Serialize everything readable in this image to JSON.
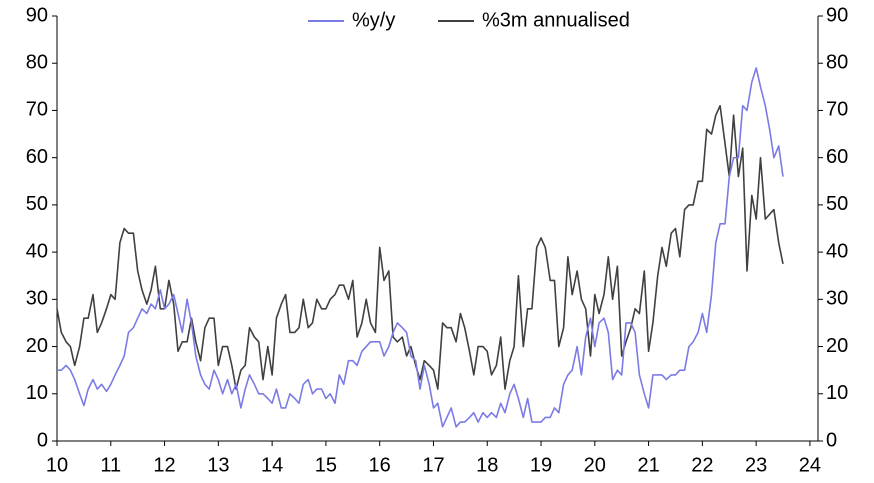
{
  "chart_data": {
    "type": "line",
    "x": [
      10,
      10.08,
      10.17,
      10.25,
      10.33,
      10.42,
      10.5,
      10.58,
      10.67,
      10.75,
      10.83,
      10.92,
      11,
      11.08,
      11.17,
      11.25,
      11.33,
      11.42,
      11.5,
      11.58,
      11.67,
      11.75,
      11.83,
      11.92,
      12,
      12.08,
      12.17,
      12.25,
      12.33,
      12.42,
      12.5,
      12.58,
      12.67,
      12.75,
      12.83,
      12.92,
      13,
      13.08,
      13.17,
      13.25,
      13.33,
      13.42,
      13.5,
      13.58,
      13.67,
      13.75,
      13.83,
      13.92,
      14,
      14.08,
      14.17,
      14.25,
      14.33,
      14.42,
      14.5,
      14.58,
      14.67,
      14.75,
      14.83,
      14.92,
      15,
      15.08,
      15.17,
      15.25,
      15.33,
      15.42,
      15.5,
      15.58,
      15.67,
      15.75,
      15.83,
      15.92,
      16,
      16.08,
      16.17,
      16.25,
      16.33,
      16.42,
      16.5,
      16.58,
      16.67,
      16.75,
      16.83,
      16.92,
      17,
      17.08,
      17.17,
      17.25,
      17.33,
      17.42,
      17.5,
      17.58,
      17.67,
      17.75,
      17.83,
      17.92,
      18,
      18.08,
      18.17,
      18.25,
      18.33,
      18.42,
      18.5,
      18.58,
      18.67,
      18.75,
      18.83,
      18.92,
      19,
      19.08,
      19.17,
      19.25,
      19.33,
      19.42,
      19.5,
      19.58,
      19.67,
      19.75,
      19.83,
      19.92,
      20,
      20.08,
      20.17,
      20.25,
      20.33,
      20.42,
      20.5,
      20.58,
      20.67,
      20.75,
      20.83,
      20.92,
      21,
      21.08,
      21.17,
      21.25,
      21.33,
      21.42,
      21.5,
      21.58,
      21.67,
      21.75,
      21.83,
      21.92,
      22,
      22.08,
      22.17,
      22.25,
      22.33,
      22.42,
      22.5,
      22.58,
      22.67,
      22.75,
      22.83,
      22.92,
      23,
      23.08,
      23.17,
      23.25,
      23.33,
      23.42,
      23.5
    ],
    "series": [
      {
        "name": "%y/y",
        "color": "#7b7be6",
        "values": [
          15,
          15,
          16,
          15,
          13,
          10,
          7.5,
          11,
          13,
          11,
          12,
          10.5,
          12,
          14,
          16,
          18,
          23,
          24,
          26,
          28,
          27,
          29,
          28,
          32,
          28,
          29,
          31,
          27,
          23,
          30,
          25,
          18,
          14,
          12,
          11,
          15,
          13,
          10,
          13,
          10,
          12,
          7,
          11,
          14,
          12,
          10,
          10,
          9,
          8,
          11,
          7,
          7,
          10,
          9,
          8,
          12,
          13,
          10,
          11,
          11,
          9,
          10,
          8,
          14,
          12,
          17,
          17,
          16,
          19,
          20,
          21,
          21,
          21,
          18,
          20,
          23,
          25,
          24,
          23,
          18,
          17,
          11,
          16,
          12,
          7,
          8,
          3,
          5,
          7,
          3,
          4,
          4,
          5,
          6,
          4,
          6,
          5,
          6,
          5,
          8,
          6,
          10,
          12,
          9,
          5,
          9,
          4,
          4,
          4,
          5,
          5,
          7,
          6,
          12,
          14,
          15,
          20,
          14,
          22,
          26,
          20,
          25,
          26,
          23,
          13,
          15,
          14,
          25,
          25,
          23,
          14,
          10,
          7,
          14,
          14,
          14,
          13,
          14,
          14,
          15,
          15,
          20,
          21,
          23,
          27,
          23,
          31,
          42,
          46,
          46,
          56,
          60,
          60,
          71,
          70,
          76,
          79,
          75,
          71,
          66,
          60,
          62.5,
          56
        ]
      },
      {
        "name": "%3m annualised",
        "color": "#404040",
        "values": [
          28,
          23,
          21,
          20,
          16,
          20,
          26,
          26,
          31,
          23,
          25,
          28,
          31,
          30,
          42,
          45,
          44,
          44,
          36,
          32,
          29,
          32,
          37,
          28,
          28,
          34,
          29,
          19,
          21,
          21,
          26,
          21,
          17,
          24,
          26,
          26,
          16,
          20,
          20,
          16,
          11,
          15,
          16,
          24,
          22,
          21,
          13,
          20,
          14,
          26,
          29,
          31,
          23,
          23,
          24,
          30,
          24,
          25,
          30,
          28,
          28,
          30,
          31,
          33,
          33,
          30,
          34,
          22,
          25,
          30,
          25,
          23,
          41,
          34,
          36,
          22,
          21,
          22,
          18,
          20,
          16,
          13,
          17,
          16,
          15,
          11,
          25,
          24,
          24,
          21,
          27,
          24,
          19,
          14,
          20,
          20,
          19,
          14,
          16,
          22,
          11,
          17,
          20,
          35,
          20,
          28,
          28,
          41,
          43,
          41,
          34,
          34,
          20,
          24,
          39,
          31,
          36,
          30,
          28,
          18,
          31,
          27,
          31,
          39,
          30,
          37,
          18,
          21,
          24,
          28,
          27,
          36,
          19,
          25,
          35,
          41,
          37,
          44,
          45,
          39,
          49,
          50,
          50,
          55,
          55,
          66,
          65,
          69,
          71,
          63,
          56,
          69,
          56,
          62,
          36,
          52,
          47,
          60,
          47,
          48,
          49,
          42,
          37.5
        ]
      }
    ],
    "xlim": [
      10,
      24.15
    ],
    "xticks": [
      10,
      11,
      12,
      13,
      14,
      15,
      16,
      17,
      18,
      19,
      20,
      21,
      22,
      23,
      24
    ],
    "ylim": [
      0,
      90
    ],
    "yticks": [
      0,
      10,
      20,
      30,
      40,
      50,
      60,
      70,
      80,
      90
    ],
    "y2lim": [
      0,
      90
    ],
    "y2ticks": [
      0,
      10,
      20,
      30,
      40,
      50,
      60,
      70,
      80,
      90
    ],
    "grid": false,
    "legend": "top"
  }
}
